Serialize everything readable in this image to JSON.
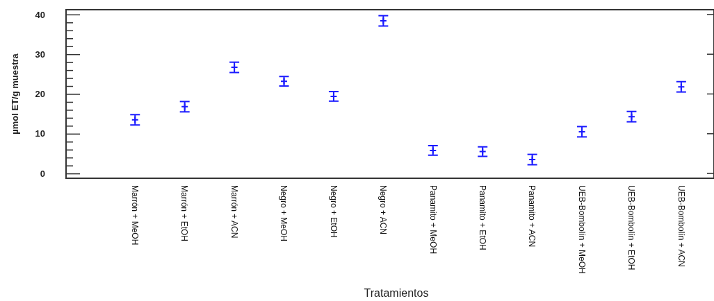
{
  "chart_data": {
    "type": "scatter",
    "xlabel": "Tratamientos",
    "ylabel": "µmol ET/g muestra",
    "categories": [
      "Marrón + MeOH",
      "Marrón + EtOH",
      "Marrón + ACN",
      "Negro + MeOH",
      "Negro + EtOH",
      "Negro + ACN",
      "Panamito + MeOH",
      "Panamito + EtOH",
      "Panamito + ACN",
      "UEB-Bombolín + MeOH",
      "UEB-Bombolín + EtOH",
      "UEB-Bombolín + ACN"
    ],
    "series": [
      {
        "color": "#1a1aff",
        "values": [
          13.5,
          16.8,
          26.7,
          23.2,
          19.4,
          38.4,
          5.8,
          5.5,
          3.5,
          10.5,
          14.3,
          21.8
        ],
        "errors": [
          1.3,
          1.3,
          1.3,
          1.2,
          1.2,
          1.3,
          1.2,
          1.2,
          1.3,
          1.3,
          1.3,
          1.3
        ]
      }
    ],
    "ylim": [
      -1.2,
      41.2
    ],
    "yticks": [
      0,
      {
        "value": 2,
        "label": null
      },
      {
        "value": 4,
        "label": null
      },
      {
        "value": 6,
        "label": null
      },
      {
        "value": 8,
        "label": null
      },
      10,
      {
        "value": 12,
        "label": null
      },
      {
        "value": 14,
        "label": null
      },
      {
        "value": 16,
        "label": null
      },
      {
        "value": 18,
        "label": null
      },
      20,
      {
        "value": 22,
        "label": null
      },
      {
        "value": 24,
        "label": null
      },
      {
        "value": 26,
        "label": null
      },
      {
        "value": 28,
        "label": null
      },
      30,
      {
        "value": 32,
        "label": null
      },
      {
        "value": 34,
        "label": null
      },
      {
        "value": 36,
        "label": null
      },
      {
        "value": 38,
        "label": null
      },
      40
    ],
    "marker": "cross",
    "grid": false
  }
}
